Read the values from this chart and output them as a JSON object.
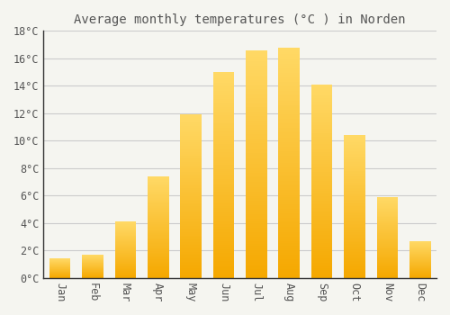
{
  "title": "Average monthly temperatures (°C ) in Norden",
  "months": [
    "Jan",
    "Feb",
    "Mar",
    "Apr",
    "May",
    "Jun",
    "Jul",
    "Aug",
    "Sep",
    "Oct",
    "Nov",
    "Dec"
  ],
  "temperatures": [
    1.4,
    1.7,
    4.1,
    7.4,
    11.9,
    15.0,
    16.6,
    16.8,
    14.1,
    10.4,
    5.9,
    2.7
  ],
  "bar_color_bottom": "#F5A800",
  "bar_color_top": "#FFD966",
  "background_color": "#F5F5F0",
  "grid_color": "#CCCCCC",
  "text_color": "#555555",
  "ylim": [
    0,
    18
  ],
  "yticks": [
    0,
    2,
    4,
    6,
    8,
    10,
    12,
    14,
    16,
    18
  ],
  "title_fontsize": 10,
  "tick_fontsize": 8.5,
  "font_family": "monospace"
}
